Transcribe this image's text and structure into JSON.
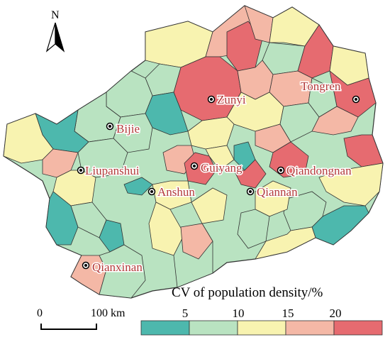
{
  "north_label": "N",
  "cities": [
    {
      "name": "Zunyi"
    },
    {
      "name": "Tongren"
    },
    {
      "name": "Bijie"
    },
    {
      "name": "Liupanshui"
    },
    {
      "name": "Guiyang"
    },
    {
      "name": "Qiandongnan"
    },
    {
      "name": "Anshun"
    },
    {
      "name": "Qiannan"
    },
    {
      "name": "Qianxinan"
    }
  ],
  "scale_bar": {
    "start_label": "0",
    "end_label": "100 km"
  },
  "legend": {
    "title": "CV of population density/%",
    "ticks": [
      "5",
      "10",
      "15",
      "20"
    ],
    "classes": [
      {
        "color": "#4db8ad"
      },
      {
        "color": "#b9e3c1"
      },
      {
        "color": "#f8f3b0"
      },
      {
        "color": "#f4b8a6"
      },
      {
        "color": "#e66b70"
      }
    ]
  },
  "map_colors": {
    "teal": "#4db8ad",
    "mint": "#b9e3c1",
    "yellow": "#f8f3b0",
    "salmon": "#f4b8a6",
    "red": "#e66b70",
    "border": "#333333"
  }
}
